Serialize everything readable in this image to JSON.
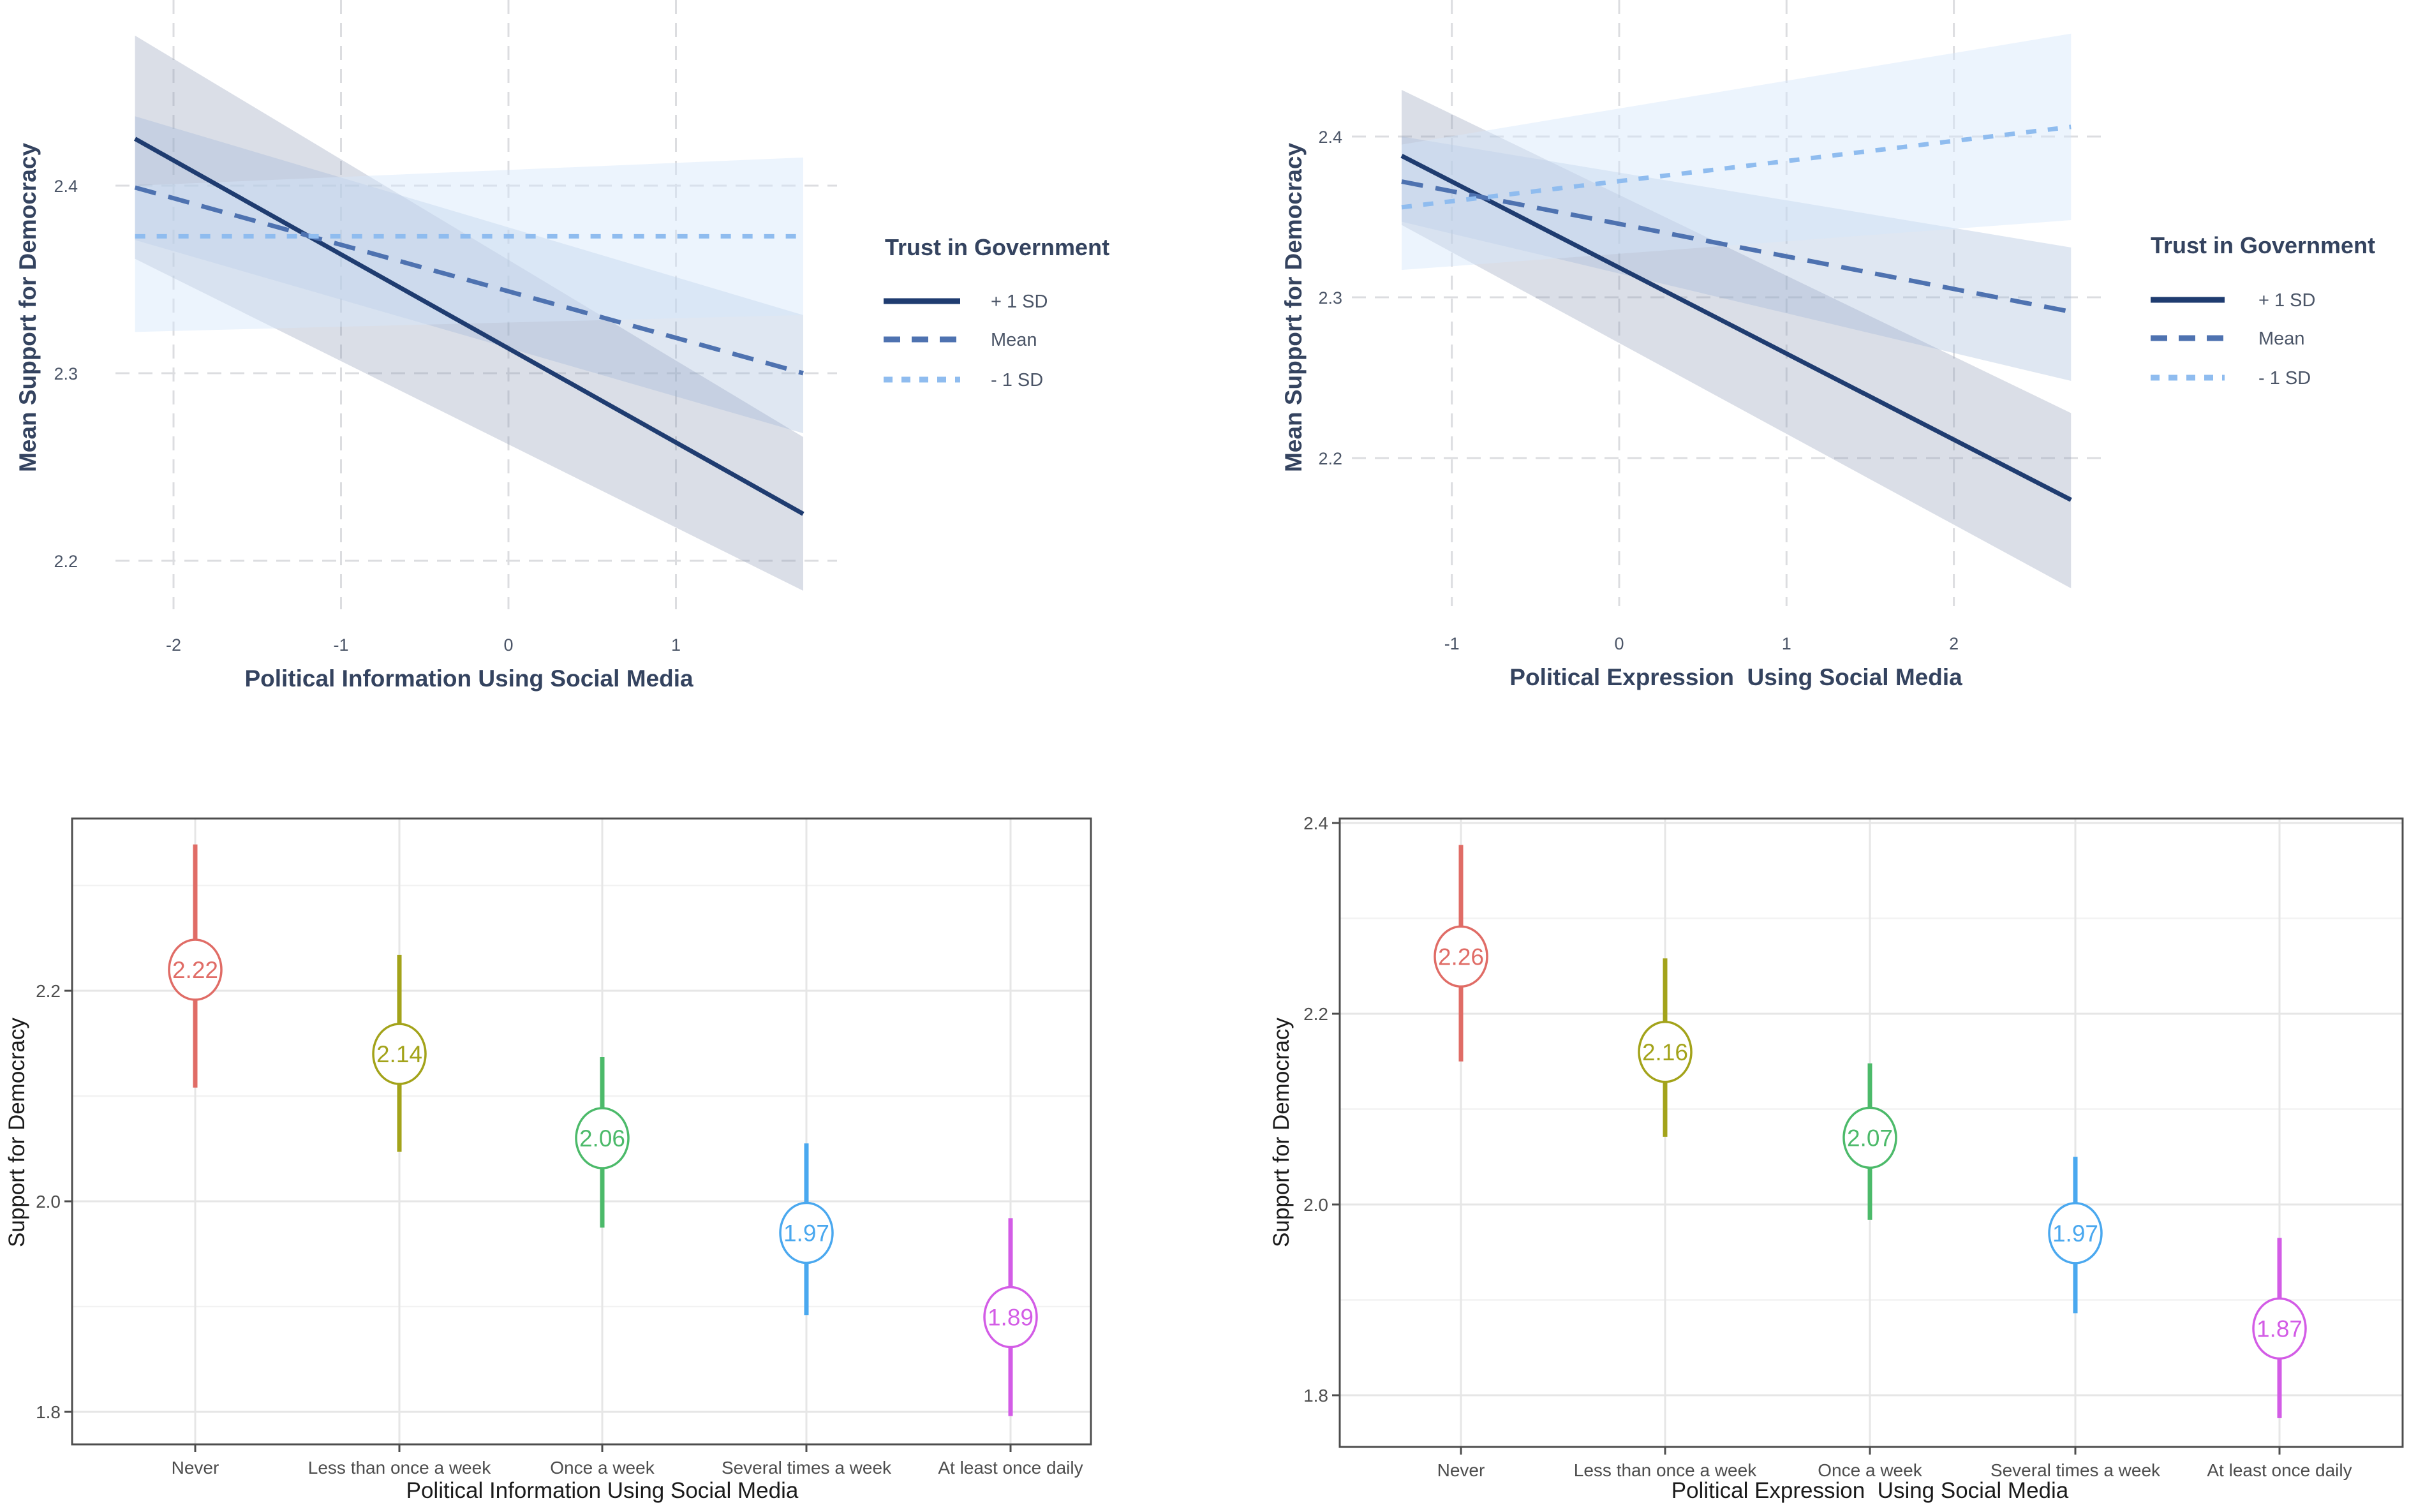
{
  "chart_data": [
    {
      "id": "tl",
      "type": "line",
      "title": "",
      "xlabel": "Political Information Using Social Media",
      "ylabel": "Mean Support for Democracy",
      "xlim": [
        -2.3,
        1.85
      ],
      "ylim": [
        2.17,
        2.5
      ],
      "xticks": [
        "-2",
        "-1",
        "0",
        "1"
      ],
      "xtick_values": [
        -2,
        -1,
        0,
        1
      ],
      "yticks": [
        "2.2",
        "2.3",
        "2.4"
      ],
      "ytick_values": [
        2.2,
        2.3,
        2.4
      ],
      "grid": "dashed",
      "x": [
        -2.23,
        1.76
      ],
      "legend": {
        "title": "Trust in Government",
        "placement": "right",
        "entries": [
          "+ 1 SD",
          "Mean",
          "- 1 SD"
        ]
      },
      "series": [
        {
          "name": "+ 1 SD",
          "style": "solid",
          "color": "#1f3c70",
          "band_color": "#8c98b4",
          "values": [
            2.425,
            2.225
          ],
          "ci_lower": [
            2.361,
            2.184
          ],
          "ci_upper": [
            2.48,
            2.266
          ]
        },
        {
          "name": "Mean",
          "style": "dashed",
          "color": "#4e72b0",
          "band_color": "#9db4d6",
          "values": [
            2.399,
            2.3
          ],
          "ci_lower": [
            2.371,
            2.268
          ],
          "ci_upper": [
            2.437,
            2.331
          ]
        },
        {
          "name": "- 1 SD",
          "style": "dotted",
          "color": "#8fbcef",
          "band_color": "#d5e7fb",
          "values": [
            2.373,
            2.373
          ],
          "ci_lower": [
            2.322,
            2.331
          ],
          "ci_upper": [
            2.4,
            2.415
          ]
        }
      ]
    },
    {
      "id": "tr",
      "type": "line",
      "title": "",
      "xlabel": "Political Expression  Using Social Media",
      "ylabel": "Mean Support for Democracy",
      "xlim": [
        -1.45,
        2.85
      ],
      "ylim": [
        2.12,
        2.48
      ],
      "xticks": [
        "-1",
        "0",
        "1",
        "2"
      ],
      "xtick_values": [
        -1,
        0,
        1,
        2
      ],
      "yticks": [
        "2.2",
        "2.3",
        "2.4"
      ],
      "ytick_values": [
        2.2,
        2.3,
        2.4
      ],
      "grid": "dashed",
      "x": [
        -1.3,
        2.7
      ],
      "legend": {
        "title": "Trust in Government",
        "placement": "right",
        "entries": [
          "+ 1 SD",
          "Mean",
          "- 1 SD"
        ]
      },
      "series": [
        {
          "name": "+ 1 SD",
          "style": "solid",
          "color": "#1f3c70",
          "band_color": "#8c98b4",
          "values": [
            2.388,
            2.174
          ],
          "ci_lower": [
            2.345,
            2.119
          ],
          "ci_upper": [
            2.429,
            2.228
          ]
        },
        {
          "name": "Mean",
          "style": "dashed",
          "color": "#4e72b0",
          "band_color": "#9db4d6",
          "values": [
            2.372,
            2.291
          ],
          "ci_lower": [
            2.347,
            2.248
          ],
          "ci_upper": [
            2.4,
            2.331
          ]
        },
        {
          "name": "- 1 SD",
          "style": "dotted",
          "color": "#8fbcef",
          "band_color": "#d5e7fb",
          "values": [
            2.356,
            2.406
          ],
          "ci_lower": [
            2.317,
            2.348
          ],
          "ci_upper": [
            2.395,
            2.464
          ]
        }
      ]
    },
    {
      "id": "bl",
      "type": "scatter",
      "title": "",
      "xlabel": "Political Information Using Social Media",
      "ylabel": "Support for Democracy",
      "categories": [
        "Never",
        "Less than once a week",
        "Once a week",
        "Several times a week",
        "At least once daily"
      ],
      "values": [
        2.22,
        2.14,
        2.06,
        1.97,
        1.89
      ],
      "labels": [
        "2.22",
        "2.14",
        "2.06",
        "1.97",
        "1.89"
      ],
      "ci_lower": [
        2.108,
        2.047,
        1.975,
        1.892,
        1.796
      ],
      "ci_upper": [
        2.339,
        2.234,
        2.137,
        2.055,
        1.984
      ],
      "colors": [
        "#e06c66",
        "#a3a31a",
        "#4cba6a",
        "#4aa8ef",
        "#d35ce6"
      ],
      "yticks": [
        "1.8",
        "2.0",
        "2.2"
      ],
      "ytick_values": [
        1.8,
        2.0,
        2.2
      ],
      "minor_ytick_values": [
        1.9,
        2.1,
        2.3
      ],
      "ylim": [
        1.769,
        2.364
      ],
      "grid": true
    },
    {
      "id": "br",
      "type": "scatter",
      "title": "",
      "xlabel": "Political Expression  Using Social Media",
      "ylabel": "Support for Democracy",
      "categories": [
        "Never",
        "Less than once a week",
        "Once a week",
        "Several times a week",
        "At least once daily"
      ],
      "values": [
        2.26,
        2.16,
        2.07,
        1.97,
        1.87
      ],
      "labels": [
        "2.26",
        "2.16",
        "2.07",
        "1.97",
        "1.87"
      ],
      "ci_lower": [
        2.15,
        2.071,
        1.984,
        1.886,
        1.776
      ],
      "ci_upper": [
        2.377,
        2.258,
        2.148,
        2.05,
        1.965
      ],
      "colors": [
        "#e06c66",
        "#a3a31a",
        "#4cba6a",
        "#4aa8ef",
        "#d35ce6"
      ],
      "yticks": [
        "1.8",
        "2.0",
        "2.2",
        "2.4"
      ],
      "ytick_values": [
        1.8,
        2.0,
        2.2,
        2.4
      ],
      "minor_ytick_values": [
        1.9,
        2.1,
        2.3
      ],
      "ylim": [
        1.745,
        2.405
      ],
      "grid": true
    }
  ]
}
